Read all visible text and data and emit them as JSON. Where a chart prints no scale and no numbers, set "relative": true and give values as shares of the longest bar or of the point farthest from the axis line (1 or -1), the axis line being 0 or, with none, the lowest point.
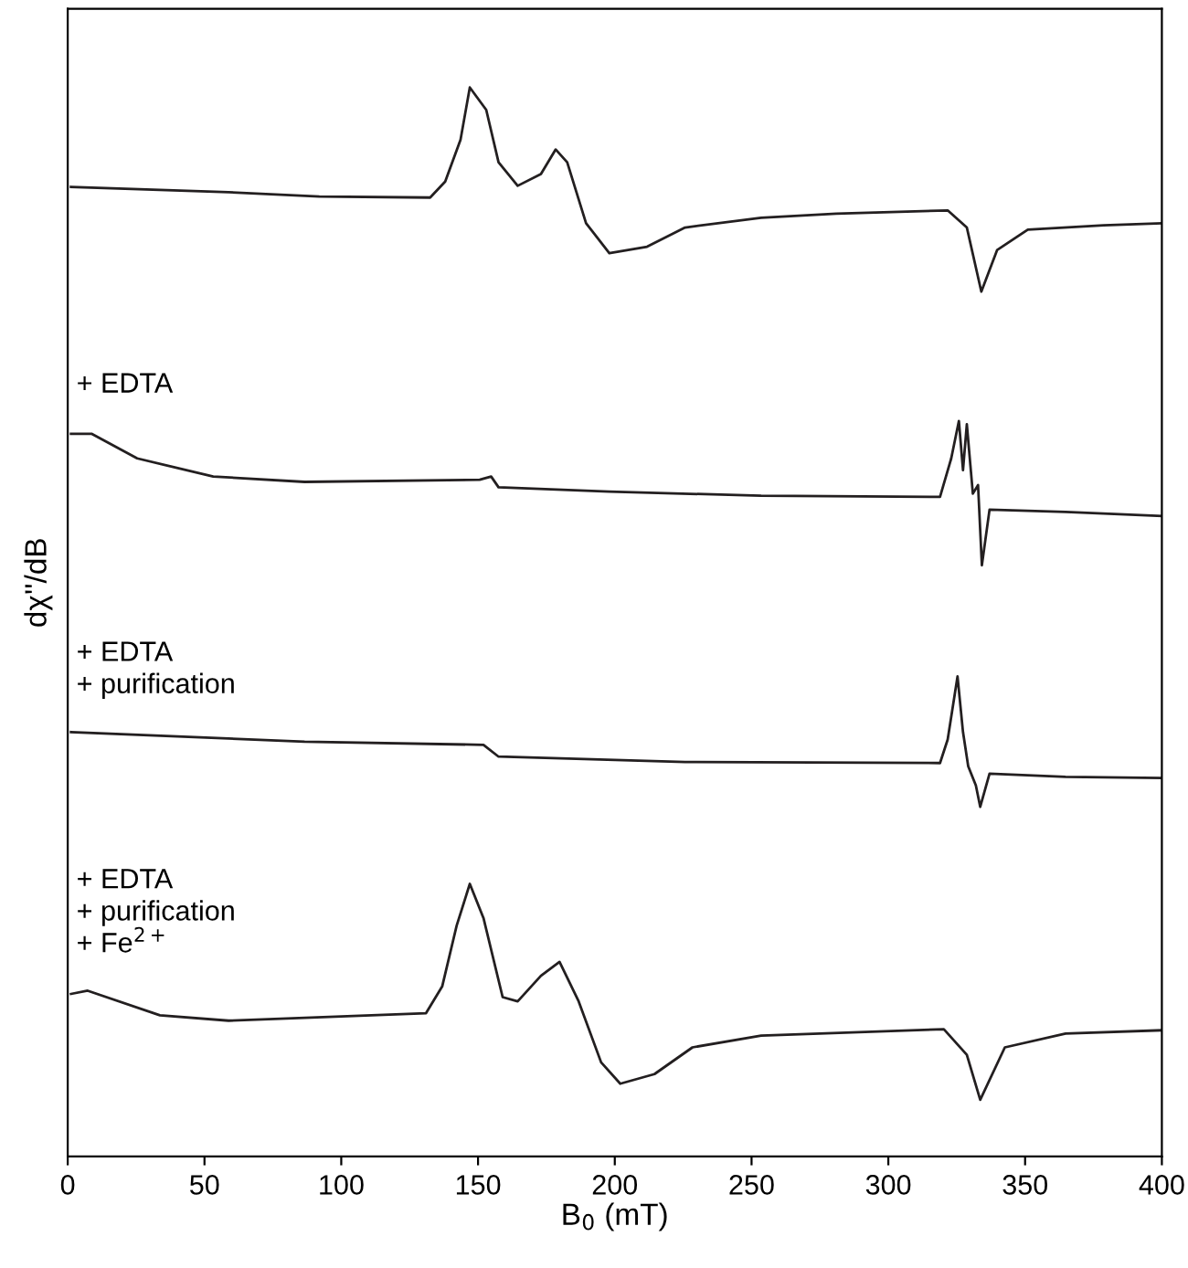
{
  "chart_data": {
    "type": "line",
    "relative": true,
    "xlabel": "B$_{0}$ (mT)",
    "ylabel": "dχ''/dB",
    "xlim": [
      0,
      400
    ],
    "xticks": [
      0,
      50,
      100,
      150,
      200,
      250,
      300,
      350,
      400
    ],
    "tick_labels": "x",
    "grid": false,
    "legend": false,
    "marker": "none",
    "line_style": "solid",
    "annotations": [
      "+ EDTA",
      "+ EDTA\n+ purification",
      "+ EDTA\n+ purification\n+ Fe$^{2+}$"
    ],
    "series": [
      {
        "color": "#231f20",
        "x": [
          1.2,
          58.8,
          92,
          132.5,
          138,
          143.6,
          147,
          153,
          157.5,
          164.5,
          173,
          178.4,
          182.6,
          189.5,
          198,
          211.8,
          225.7,
          253.5,
          281,
          321.7,
          328.7,
          334,
          339.8,
          351,
          378.7,
          400
        ],
        "values": [
          0.907,
          0.902,
          0.898,
          0.897,
          0.912,
          0.951,
          1.0,
          0.979,
          0.93,
          0.908,
          0.919,
          0.942,
          0.93,
          0.873,
          0.845,
          0.851,
          0.869,
          0.878,
          0.882,
          0.885,
          0.869,
          0.809,
          0.848,
          0.867,
          0.871,
          0.873
        ]
      },
      {
        "color": "#231f20",
        "x": [
          1.2,
          8.7,
          25.4,
          53.2,
          86.6,
          150.6,
          154.8,
          157.5,
          197.9,
          253.5,
          318.9,
          323,
          325.8,
          327.3,
          328.7,
          330.9,
          332.8,
          334.2,
          337,
          364.8,
          400
        ],
        "values": [
          0.676,
          0.676,
          0.653,
          0.636,
          0.631,
          0.633,
          0.636,
          0.626,
          0.622,
          0.618,
          0.617,
          0.653,
          0.688,
          0.642,
          0.685,
          0.62,
          0.628,
          0.553,
          0.605,
          0.603,
          0.599
        ]
      },
      {
        "color": "#231f20",
        "x": [
          1.2,
          86.6,
          152,
          157.5,
          225.7,
          318.9,
          321.7,
          325.3,
          327.3,
          329.2,
          332,
          333.6,
          337,
          364.8,
          400
        ],
        "values": [
          0.397,
          0.388,
          0.385,
          0.374,
          0.369,
          0.368,
          0.39,
          0.449,
          0.397,
          0.365,
          0.347,
          0.327,
          0.358,
          0.355,
          0.354
        ]
      },
      {
        "color": "#231f20",
        "x": [
          1.2,
          7.3,
          33.7,
          58.8,
          131,
          136.9,
          142.2,
          147,
          152,
          159,
          164.5,
          173,
          179.8,
          186.8,
          195,
          202,
          214.5,
          228.4,
          253.5,
          320.3,
          328.7,
          333.6,
          342.6,
          364.8,
          400
        ],
        "values": [
          0.152,
          0.155,
          0.132,
          0.127,
          0.134,
          0.159,
          0.216,
          0.255,
          0.223,
          0.149,
          0.145,
          0.169,
          0.182,
          0.145,
          0.088,
          0.068,
          0.077,
          0.102,
          0.113,
          0.119,
          0.095,
          0.053,
          0.102,
          0.115,
          0.118
        ]
      }
    ]
  }
}
